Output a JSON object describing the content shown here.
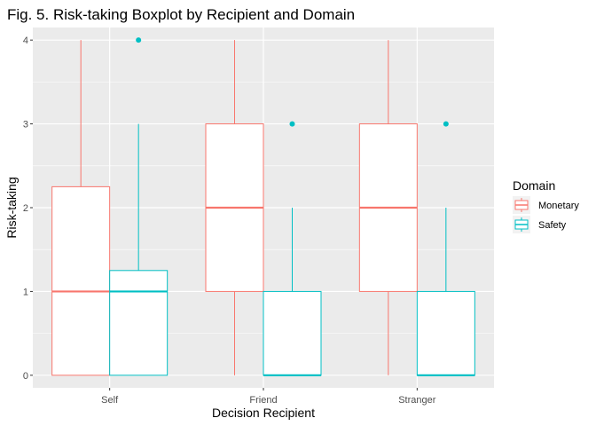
{
  "chart_data": {
    "type": "boxplot",
    "title": "Fig. 5. Risk-taking Boxplot by Recipient and Domain",
    "xlabel": "Decision Recipient",
    "ylabel": "Risk-taking",
    "categories": [
      "Self",
      "Friend",
      "Stranger"
    ],
    "y_ticks": [
      "0",
      "1",
      "2",
      "3",
      "4"
    ],
    "ylim": [
      -0.15,
      4.15
    ],
    "grid": true,
    "legend": {
      "title": "Domain",
      "placement": "right",
      "entries": [
        "Monetary",
        "Safety"
      ]
    },
    "series": [
      {
        "name": "Monetary",
        "color": "#F8766D",
        "boxes": [
          {
            "category": "Self",
            "min": 0,
            "q1": 0,
            "median": 1,
            "q3": 2.25,
            "max": 4,
            "outliers": []
          },
          {
            "category": "Friend",
            "min": 0,
            "q1": 1,
            "median": 2,
            "q3": 3,
            "max": 4,
            "outliers": []
          },
          {
            "category": "Stranger",
            "min": 0,
            "q1": 1,
            "median": 2,
            "q3": 3,
            "max": 4,
            "outliers": []
          }
        ]
      },
      {
        "name": "Safety",
        "color": "#00BFC4",
        "boxes": [
          {
            "category": "Self",
            "min": 0,
            "q1": 0,
            "median": 1,
            "q3": 1.25,
            "max": 3,
            "outliers": [
              4
            ]
          },
          {
            "category": "Friend",
            "min": 0,
            "q1": 0,
            "median": 0,
            "q3": 1,
            "max": 2,
            "outliers": [
              3
            ]
          },
          {
            "category": "Stranger",
            "min": 0,
            "q1": 0,
            "median": 0,
            "q3": 1,
            "max": 2,
            "outliers": [
              3
            ]
          }
        ]
      }
    ]
  }
}
